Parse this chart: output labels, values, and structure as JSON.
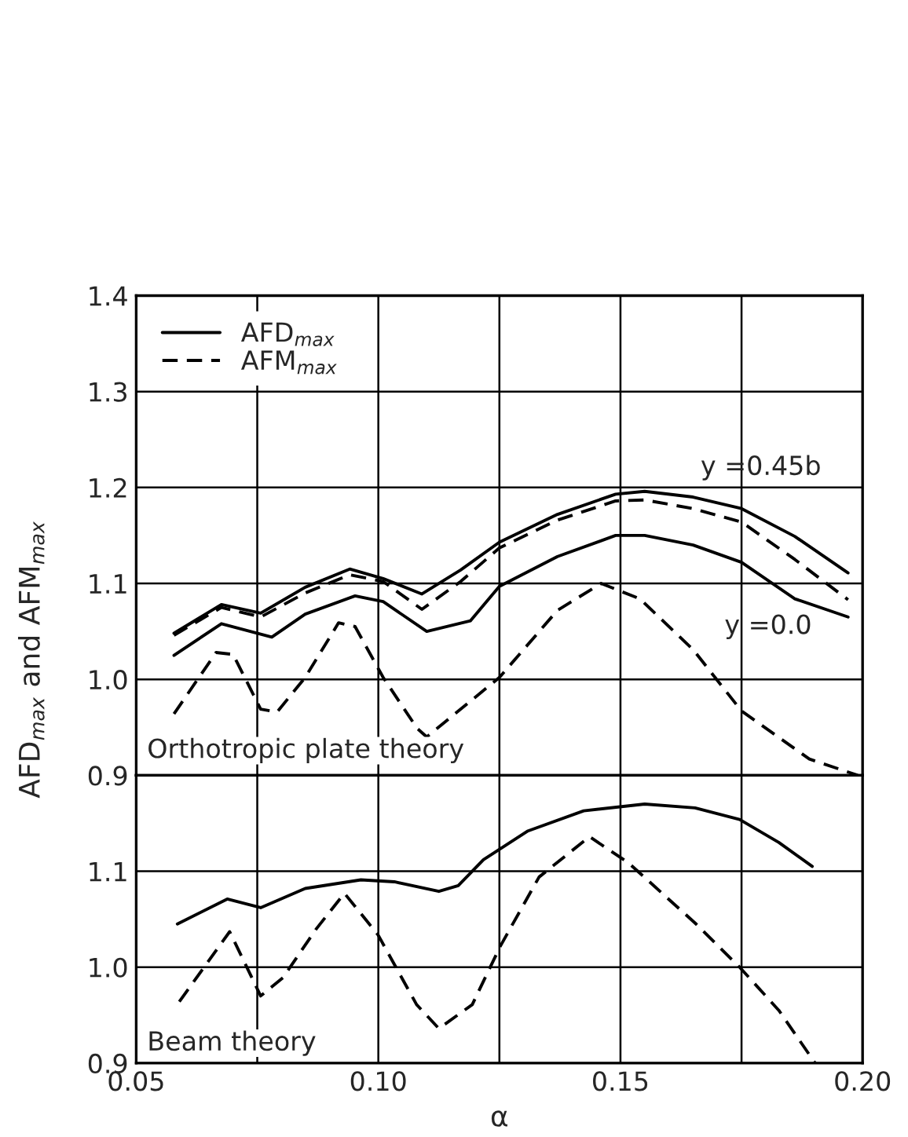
{
  "chart_data": [
    {
      "type": "line",
      "ylabel": "AFD$_{max}$ and AFM$_{max}$",
      "xlim": [
        0.05,
        0.2
      ],
      "ylim": [
        0.9,
        1.4
      ],
      "yticks": [
        0.9,
        {
          "value": 1.0,
          "label": "1.0"
        },
        1.1,
        1.2,
        1.3,
        1.4
      ],
      "tick_labels": "y",
      "grid": true,
      "legend": "top left",
      "series": [
        {
          "name": "AFD$_{max}$",
          "color": "#000000",
          "line_style": "solid",
          "x": [
            0.0578,
            0.0676,
            0.0757,
            0.0849,
            0.0941,
            0.101,
            0.109,
            0.117,
            0.125,
            0.137,
            0.149,
            0.155,
            0.165,
            0.175,
            0.186,
            0.197
          ],
          "values": [
            1.048,
            1.078,
            1.069,
            1.096,
            1.115,
            1.105,
            1.089,
            1.114,
            1.143,
            1.172,
            1.193,
            1.196,
            1.19,
            1.178,
            1.149,
            1.111
          ]
        },
        {
          "name": "AFM$_{max}$",
          "color": "#000000",
          "line_style": "dashed",
          "x": [
            0.0578,
            0.0676,
            0.0757,
            0.0849,
            0.0941,
            0.101,
            0.109,
            0.117,
            0.125,
            0.137,
            0.149,
            0.155,
            0.165,
            0.175,
            0.186,
            0.197
          ],
          "values": [
            1.046,
            1.075,
            1.065,
            1.09,
            1.109,
            1.102,
            1.073,
            1.102,
            1.137,
            1.166,
            1.186,
            1.187,
            1.178,
            1.164,
            1.125,
            1.083
          ]
        },
        {
          "color": "#000000",
          "line_style": "solid",
          "x": [
            0.0578,
            0.0676,
            0.078,
            0.0849,
            0.0952,
            0.101,
            0.11,
            0.119,
            0.125,
            0.137,
            0.149,
            0.155,
            0.165,
            0.175,
            0.186,
            0.197
          ],
          "values": [
            1.025,
            1.058,
            1.044,
            1.068,
            1.087,
            1.081,
            1.05,
            1.061,
            1.097,
            1.128,
            1.15,
            1.15,
            1.14,
            1.122,
            1.084,
            1.065
          ]
        },
        {
          "color": "#000000",
          "line_style": "dashed",
          "x": [
            0.0578,
            0.0665,
            0.07,
            0.0757,
            0.0791,
            0.0849,
            0.0918,
            0.0952,
            0.101,
            0.108,
            0.11,
            0.125,
            0.137,
            0.146,
            0.154,
            0.165,
            0.175,
            0.189,
            0.199
          ],
          "values": [
            0.964,
            1.028,
            1.026,
            0.969,
            0.966,
            1.002,
            1.059,
            1.055,
            1.002,
            0.949,
            0.94,
            1.002,
            1.072,
            1.1,
            1.084,
            1.031,
            0.967,
            0.917,
            0.9
          ]
        }
      ],
      "annotations": [
        "y =0.45b",
        "y =0.0",
        "Orthotropic plate theory"
      ]
    },
    {
      "type": "line",
      "xlabel": "α",
      "xlim": [
        0.05,
        0.2
      ],
      "xticks": [
        0.05,
        {
          "value": 0.075,
          "label": null
        },
        {
          "value": 0.1,
          "label": "0.10"
        },
        {
          "value": 0.125,
          "label": null
        },
        0.15,
        {
          "value": 0.175,
          "label": null
        },
        {
          "value": 0.2,
          "label": "0.20"
        }
      ],
      "ylim": [
        0.9,
        1.2
      ],
      "yticks": [
        0.9,
        {
          "value": 1.0,
          "label": "1.0"
        },
        1.1
      ],
      "grid": true,
      "series": [
        {
          "color": "#000000",
          "line_style": "solid",
          "x": [
            0.0585,
            0.0688,
            0.0757,
            0.0849,
            0.0964,
            0.1033,
            0.1125,
            0.1165,
            0.1217,
            0.1309,
            0.1424,
            0.155,
            0.1654,
            0.1746,
            0.1827,
            0.1896
          ],
          "values": [
            1.045,
            1.071,
            1.062,
            1.082,
            1.091,
            1.089,
            1.079,
            1.085,
            1.112,
            1.142,
            1.163,
            1.17,
            1.166,
            1.154,
            1.13,
            1.105
          ]
        },
        {
          "color": "#000000",
          "line_style": "dashed",
          "x": [
            0.0589,
            0.0693,
            0.0757,
            0.0803,
            0.0872,
            0.093,
            0.0999,
            0.1079,
            0.1125,
            0.1194,
            0.1252,
            0.1332,
            0.1436,
            0.1516,
            0.1654,
            0.1746,
            0.1827,
            0.1902
          ],
          "values": [
            0.964,
            1.037,
            0.97,
            0.989,
            1.04,
            1.077,
            1.034,
            0.961,
            0.936,
            0.961,
            1.022,
            1.094,
            1.136,
            1.109,
            1.046,
            1.0,
            0.955,
            0.9
          ]
        }
      ],
      "annotations": [
        "Beam theory"
      ]
    }
  ]
}
